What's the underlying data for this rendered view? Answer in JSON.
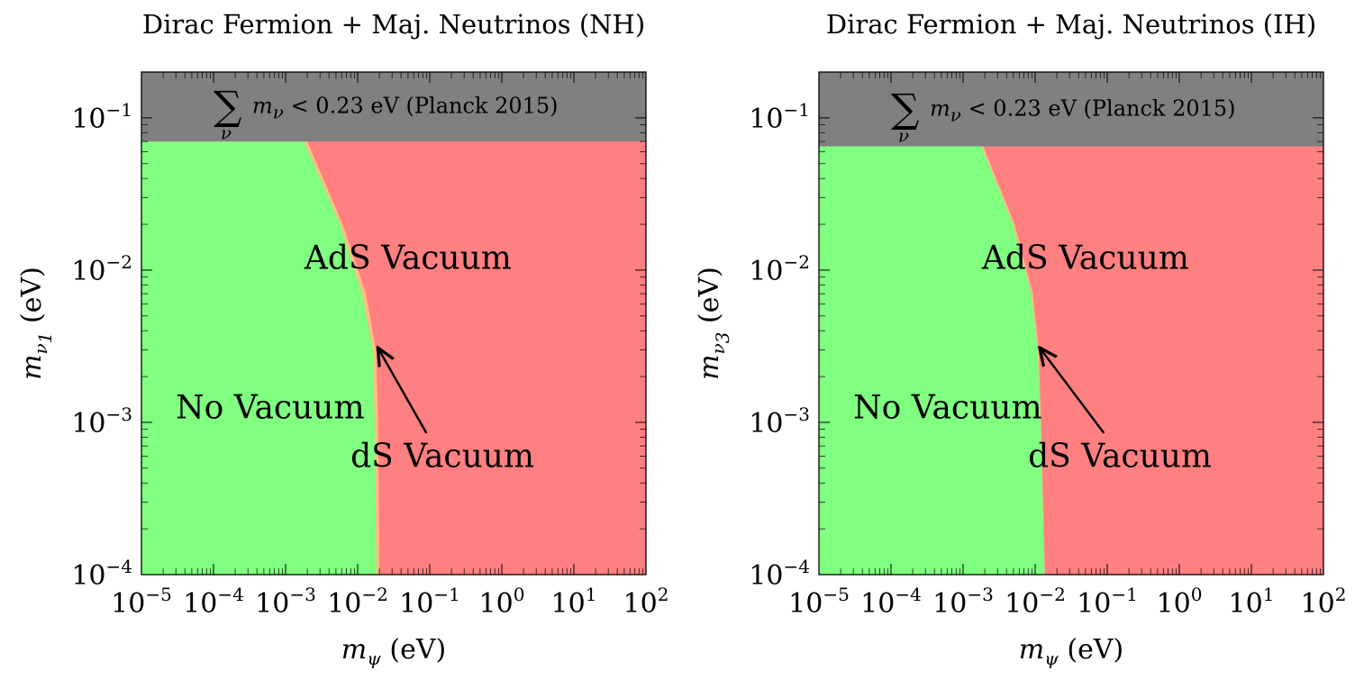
{
  "chart_data": [
    {
      "type": "area",
      "title": "Dirac Fermion + Maj. Neutrinos (NH)",
      "xlabel": {
        "symbol": "m",
        "sub": "ψ",
        "unit": "(eV)"
      },
      "ylabel": {
        "symbol": "m",
        "sub": "ν",
        "subsub": "1",
        "unit": "(eV)"
      },
      "x_scale": "log",
      "y_scale": "log",
      "xlim": [
        1e-05,
        100
      ],
      "ylim": [
        0.0001,
        0.2
      ],
      "x_ticks": [
        {
          "value": 1e-05,
          "base": "10",
          "exp": "−5"
        },
        {
          "value": 0.0001,
          "base": "10",
          "exp": "−4"
        },
        {
          "value": 0.001,
          "base": "10",
          "exp": "−3"
        },
        {
          "value": 0.01,
          "base": "10",
          "exp": "−2"
        },
        {
          "value": 0.1,
          "base": "10",
          "exp": "−1"
        },
        {
          "value": 1,
          "base": "10",
          "exp": "0"
        },
        {
          "value": 10,
          "base": "10",
          "exp": "1"
        },
        {
          "value": 100,
          "base": "10",
          "exp": "2"
        }
      ],
      "y_ticks": [
        {
          "value": 0.0001,
          "base": "10",
          "exp": "−4"
        },
        {
          "value": 0.001,
          "base": "10",
          "exp": "−3"
        },
        {
          "value": 0.01,
          "base": "10",
          "exp": "−2"
        },
        {
          "value": 0.1,
          "base": "10",
          "exp": "−1"
        }
      ],
      "planck_limit_y": 0.07,
      "planck_label": {
        "text": "m",
        "sub": "ν",
        "rest": " < 0.23 eV (Planck 2015)",
        "sum_index": "ν"
      },
      "regions": {
        "no_vacuum": {
          "label": "No Vacuum",
          "color": "#80ff80"
        },
        "ds_vacuum": {
          "label": "dS Vacuum",
          "color": "#ffbf80"
        },
        "ads_vacuum": {
          "label": "AdS Vacuum",
          "color": "#ff8080"
        },
        "excluded": {
          "color": "#808080"
        }
      },
      "boundary_ds_left": [
        [
          0.0182,
          0.0001
        ],
        [
          0.0172,
          0.001
        ],
        [
          0.0162,
          0.003
        ],
        [
          0.0115,
          0.007
        ],
        [
          0.0057,
          0.02
        ],
        [
          0.0018,
          0.07
        ]
      ],
      "boundary_ds_right": [
        [
          0.02,
          0.0001
        ],
        [
          0.0192,
          0.001
        ],
        [
          0.018,
          0.003
        ],
        [
          0.013,
          0.007
        ],
        [
          0.0062,
          0.02
        ],
        [
          0.002,
          0.07
        ]
      ],
      "label_positions": {
        "no_vacuum": [
          3e-05,
          0.00125
        ],
        "ads_vacuum": [
          0.05,
          0.012
        ],
        "ds_vacuum": [
          0.15,
          0.0006
        ]
      },
      "arrow": {
        "from": [
          0.09,
          0.00085
        ],
        "to": [
          0.019,
          0.0031
        ]
      }
    },
    {
      "type": "area",
      "title": "Dirac Fermion + Maj. Neutrinos (IH)",
      "xlabel": {
        "symbol": "m",
        "sub": "ψ",
        "unit": "(eV)"
      },
      "ylabel": {
        "symbol": "m",
        "sub": "ν",
        "subsub": "3",
        "unit": "(eV)"
      },
      "x_scale": "log",
      "y_scale": "log",
      "xlim": [
        1e-05,
        100
      ],
      "ylim": [
        0.0001,
        0.2
      ],
      "x_ticks": [
        {
          "value": 1e-05,
          "base": "10",
          "exp": "−5"
        },
        {
          "value": 0.0001,
          "base": "10",
          "exp": "−4"
        },
        {
          "value": 0.001,
          "base": "10",
          "exp": "−3"
        },
        {
          "value": 0.01,
          "base": "10",
          "exp": "−2"
        },
        {
          "value": 0.1,
          "base": "10",
          "exp": "−1"
        },
        {
          "value": 1,
          "base": "10",
          "exp": "0"
        },
        {
          "value": 10,
          "base": "10",
          "exp": "1"
        },
        {
          "value": 100,
          "base": "10",
          "exp": "2"
        }
      ],
      "y_ticks": [
        {
          "value": 0.0001,
          "base": "10",
          "exp": "−4"
        },
        {
          "value": 0.001,
          "base": "10",
          "exp": "−3"
        },
        {
          "value": 0.01,
          "base": "10",
          "exp": "−2"
        },
        {
          "value": 0.1,
          "base": "10",
          "exp": "−1"
        }
      ],
      "planck_limit_y": 0.065,
      "planck_label": {
        "text": "m",
        "sub": "ν",
        "rest": " < 0.23 eV (Planck 2015)",
        "sum_index": "ν"
      },
      "regions": {
        "no_vacuum": {
          "label": "No Vacuum",
          "color": "#80ff80"
        },
        "ds_vacuum": {
          "label": "dS Vacuum",
          "color": "#ffbf80"
        },
        "ads_vacuum": {
          "label": "AdS Vacuum",
          "color": "#ff8080"
        },
        "excluded": {
          "color": "#808080"
        }
      },
      "boundary_ds_left": [
        [
          0.0135,
          0.0001
        ],
        [
          0.0118,
          0.001
        ],
        [
          0.0108,
          0.003
        ],
        [
          0.0088,
          0.007
        ],
        [
          0.0049,
          0.02
        ],
        [
          0.0018,
          0.065
        ]
      ],
      "boundary_ds_right": [
        [
          0.0137,
          0.0001
        ],
        [
          0.0121,
          0.001
        ],
        [
          0.0112,
          0.003
        ],
        [
          0.0093,
          0.007
        ],
        [
          0.0052,
          0.02
        ],
        [
          0.0019,
          0.065
        ]
      ],
      "label_positions": {
        "no_vacuum": [
          3e-05,
          0.00125
        ],
        "ads_vacuum": [
          0.05,
          0.012
        ],
        "ds_vacuum": [
          0.15,
          0.0006
        ]
      },
      "arrow": {
        "from": [
          0.09,
          0.00085
        ],
        "to": [
          0.0115,
          0.0031
        ]
      }
    }
  ]
}
